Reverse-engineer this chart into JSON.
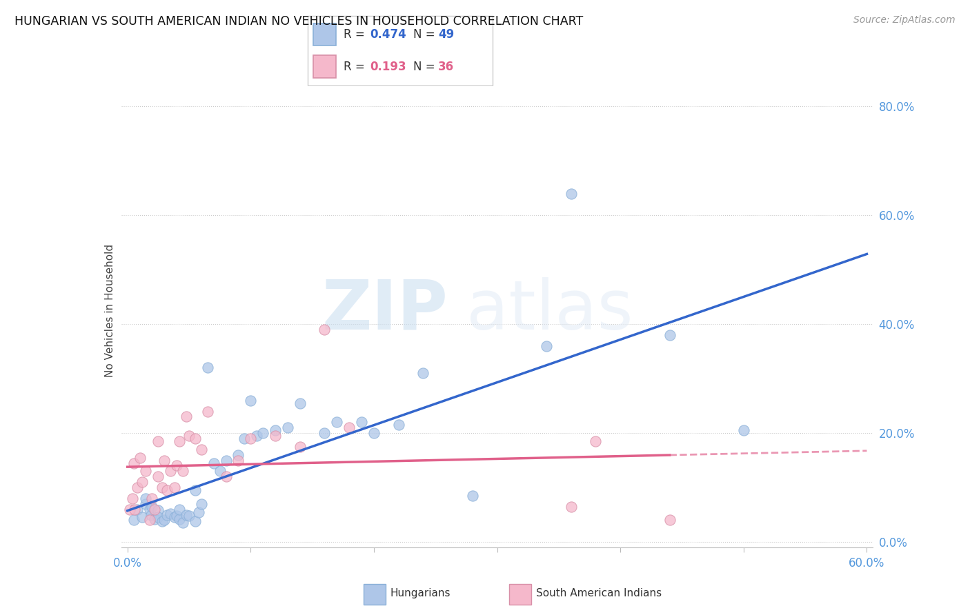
{
  "title": "HUNGARIAN VS SOUTH AMERICAN INDIAN NO VEHICLES IN HOUSEHOLD CORRELATION CHART",
  "source": "Source: ZipAtlas.com",
  "ylabel": "No Vehicles in Household",
  "xlim": [
    -0.005,
    0.605
  ],
  "ylim": [
    -0.01,
    0.86
  ],
  "xtick_vals": [
    0.0,
    0.1,
    0.2,
    0.3,
    0.4,
    0.5,
    0.6
  ],
  "xtick_labels_show": [
    "0.0%",
    "",
    "",
    "",
    "",
    "",
    "60.0%"
  ],
  "ytick_vals": [
    0.0,
    0.2,
    0.4,
    0.6,
    0.8
  ],
  "ytick_labels": [
    "0.0%",
    "20.0%",
    "40.0%",
    "60.0%",
    "80.0%"
  ],
  "legend1_R": "0.474",
  "legend1_N": "49",
  "legend2_R": "0.193",
  "legend2_N": "36",
  "hungarian_color": "#aec6e8",
  "south_american_color": "#f5b8cb",
  "hungarian_line_color": "#3366cc",
  "south_american_line_color": "#e0608a",
  "watermark_zip": "ZIP",
  "watermark_atlas": "atlas",
  "hungarian_x": [
    0.005,
    0.008,
    0.012,
    0.015,
    0.015,
    0.018,
    0.019,
    0.02,
    0.022,
    0.025,
    0.025,
    0.028,
    0.03,
    0.032,
    0.035,
    0.038,
    0.04,
    0.042,
    0.042,
    0.045,
    0.048,
    0.05,
    0.055,
    0.055,
    0.058,
    0.06,
    0.065,
    0.07,
    0.075,
    0.08,
    0.09,
    0.095,
    0.1,
    0.105,
    0.11,
    0.12,
    0.13,
    0.14,
    0.16,
    0.17,
    0.19,
    0.2,
    0.22,
    0.24,
    0.28,
    0.34,
    0.36,
    0.44,
    0.5
  ],
  "hungarian_y": [
    0.04,
    0.06,
    0.045,
    0.07,
    0.08,
    0.06,
    0.05,
    0.065,
    0.042,
    0.058,
    0.045,
    0.038,
    0.04,
    0.05,
    0.052,
    0.045,
    0.048,
    0.042,
    0.06,
    0.035,
    0.05,
    0.048,
    0.038,
    0.095,
    0.055,
    0.07,
    0.32,
    0.145,
    0.13,
    0.15,
    0.16,
    0.19,
    0.26,
    0.195,
    0.2,
    0.205,
    0.21,
    0.255,
    0.2,
    0.22,
    0.22,
    0.2,
    0.215,
    0.31,
    0.085,
    0.36,
    0.64,
    0.38,
    0.205
  ],
  "south_american_x": [
    0.002,
    0.004,
    0.005,
    0.006,
    0.008,
    0.01,
    0.012,
    0.015,
    0.018,
    0.02,
    0.022,
    0.025,
    0.025,
    0.028,
    0.03,
    0.032,
    0.035,
    0.038,
    0.04,
    0.042,
    0.045,
    0.048,
    0.05,
    0.055,
    0.06,
    0.065,
    0.08,
    0.09,
    0.1,
    0.12,
    0.14,
    0.16,
    0.18,
    0.36,
    0.38,
    0.44
  ],
  "south_american_y": [
    0.06,
    0.08,
    0.145,
    0.06,
    0.1,
    0.155,
    0.11,
    0.13,
    0.04,
    0.08,
    0.06,
    0.12,
    0.185,
    0.1,
    0.15,
    0.095,
    0.13,
    0.1,
    0.14,
    0.185,
    0.13,
    0.23,
    0.195,
    0.19,
    0.17,
    0.24,
    0.12,
    0.15,
    0.19,
    0.195,
    0.175,
    0.39,
    0.21,
    0.065,
    0.185,
    0.04
  ]
}
